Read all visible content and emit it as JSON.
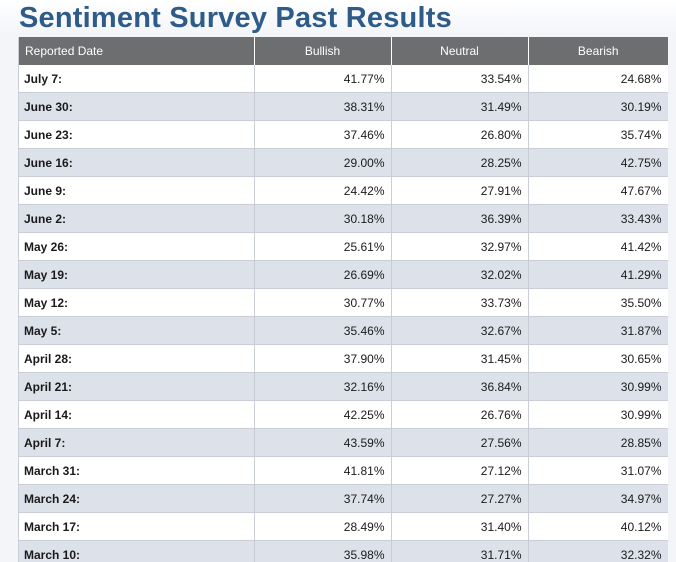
{
  "page": {
    "title": "Sentiment Survey Past Results"
  },
  "table": {
    "columns": [
      "Reported Date",
      "Bullish",
      "Neutral",
      "Bearish"
    ],
    "rows": [
      {
        "date": "July 7:",
        "bullish": "41.77%",
        "neutral": "33.54%",
        "bearish": "24.68%"
      },
      {
        "date": "June 30:",
        "bullish": "38.31%",
        "neutral": "31.49%",
        "bearish": "30.19%"
      },
      {
        "date": "June 23:",
        "bullish": "37.46%",
        "neutral": "26.80%",
        "bearish": "35.74%"
      },
      {
        "date": "June 16:",
        "bullish": "29.00%",
        "neutral": "28.25%",
        "bearish": "42.75%"
      },
      {
        "date": "June 9:",
        "bullish": "24.42%",
        "neutral": "27.91%",
        "bearish": "47.67%"
      },
      {
        "date": "June 2:",
        "bullish": "30.18%",
        "neutral": "36.39%",
        "bearish": "33.43%"
      },
      {
        "date": "May 26:",
        "bullish": "25.61%",
        "neutral": "32.97%",
        "bearish": "41.42%"
      },
      {
        "date": "May 19:",
        "bullish": "26.69%",
        "neutral": "32.02%",
        "bearish": "41.29%"
      },
      {
        "date": "May 12:",
        "bullish": "30.77%",
        "neutral": "33.73%",
        "bearish": "35.50%"
      },
      {
        "date": "May 5:",
        "bullish": "35.46%",
        "neutral": "32.67%",
        "bearish": "31.87%"
      },
      {
        "date": "April 28:",
        "bullish": "37.90%",
        "neutral": "31.45%",
        "bearish": "30.65%"
      },
      {
        "date": "April 21:",
        "bullish": "32.16%",
        "neutral": "36.84%",
        "bearish": "30.99%"
      },
      {
        "date": "April 14:",
        "bullish": "42.25%",
        "neutral": "26.76%",
        "bearish": "30.99%"
      },
      {
        "date": "April 7:",
        "bullish": "43.59%",
        "neutral": "27.56%",
        "bearish": "28.85%"
      },
      {
        "date": "March 31:",
        "bullish": "41.81%",
        "neutral": "27.12%",
        "bearish": "31.07%"
      },
      {
        "date": "March 24:",
        "bullish": "37.74%",
        "neutral": "27.27%",
        "bearish": "34.97%"
      },
      {
        "date": "March 17:",
        "bullish": "28.49%",
        "neutral": "31.40%",
        "bearish": "40.12%"
      },
      {
        "date": "March 10:",
        "bullish": "35.98%",
        "neutral": "31.71%",
        "bearish": "32.32%"
      }
    ]
  },
  "colors": {
    "title": "#2e5b88",
    "header_bg": "#6d6e70",
    "row_alt_bg": "#dce1ea",
    "row_bg": "#ffffff"
  }
}
